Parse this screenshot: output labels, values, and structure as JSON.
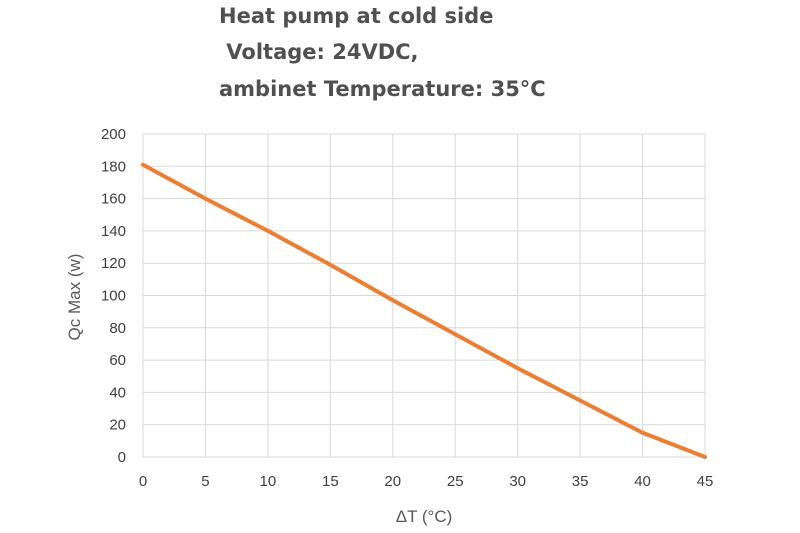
{
  "chart_data": {
    "type": "line",
    "title_lines": [
      "Heat pump at cold side",
      " Voltage: 24VDC,",
      "ambinet Temperature: 35°C"
    ],
    "xlabel": "ΔT (°C)",
    "ylabel": "Qc Max (w)",
    "xlim": [
      0,
      45
    ],
    "ylim": [
      0,
      200
    ],
    "x_ticks": [
      0,
      5,
      10,
      15,
      20,
      25,
      30,
      35,
      40,
      45
    ],
    "y_ticks": [
      0,
      20,
      40,
      60,
      80,
      100,
      120,
      140,
      160,
      180,
      200
    ],
    "grid": true,
    "legend": "none",
    "series": [
      {
        "color": "#ED7D31",
        "x": [
          0,
          5,
          10,
          15,
          20,
          25,
          30,
          35,
          40,
          45
        ],
        "y": [
          181,
          160,
          140,
          119,
          97,
          76,
          55,
          35,
          15,
          0
        ]
      }
    ],
    "colors": {
      "line": "#ED7D31",
      "grid": "#D9D9D9",
      "text": "#404040"
    }
  }
}
